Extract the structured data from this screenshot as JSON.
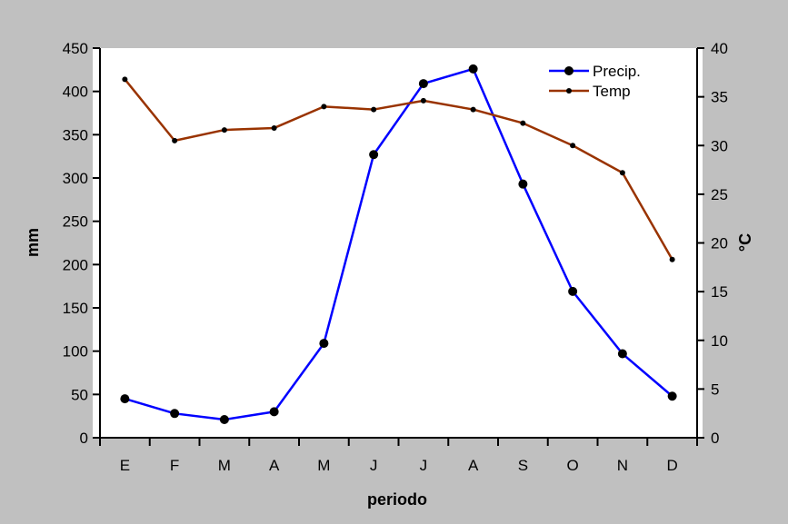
{
  "chart_data": {
    "type": "line",
    "categories": [
      "E",
      "F",
      "M",
      "A",
      "M",
      "J",
      "J",
      "A",
      "S",
      "O",
      "N",
      "D"
    ],
    "xlabel": "periodo",
    "ylabel_left": "mm",
    "ylabel_right": "°C",
    "ylim_left": [
      0,
      450
    ],
    "ylim_right": [
      0,
      40
    ],
    "yticks_left": [
      "0",
      "50",
      "100",
      "150",
      "200",
      "250",
      "300",
      "350",
      "400",
      "450"
    ],
    "yticks_right": [
      "0",
      "5",
      "10",
      "15",
      "20",
      "25",
      "30",
      "35",
      "40"
    ],
    "grid": false,
    "legend_position": "top-right",
    "series": [
      {
        "name": "Precip.",
        "axis": "left",
        "color": "#0000ff",
        "marker": "large-dot",
        "values": [
          45,
          28,
          21,
          30,
          109,
          327,
          409,
          426,
          293,
          169,
          97,
          48
        ]
      },
      {
        "name": "Temp",
        "axis": "right",
        "color": "#993300",
        "marker": "small-dot",
        "values": [
          36.8,
          30.5,
          31.6,
          31.8,
          34.0,
          33.7,
          34.6,
          33.7,
          32.3,
          30.0,
          27.2,
          18.3
        ]
      }
    ]
  }
}
